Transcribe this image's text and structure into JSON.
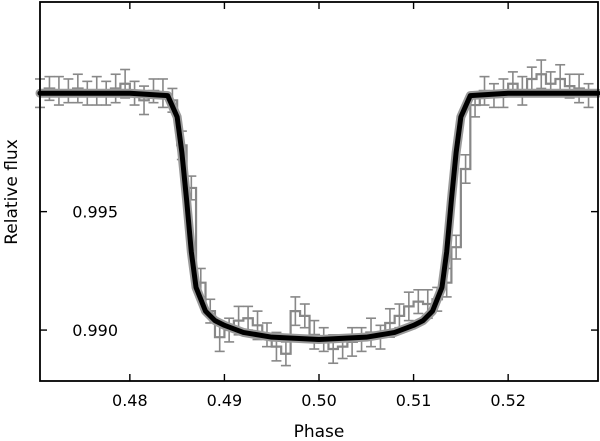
{
  "chart_data": {
    "type": "line",
    "title": "",
    "xlabel": "Phase",
    "ylabel": "Relative flux",
    "xlim": [
      0.4705,
      0.5295
    ],
    "ylim": [
      0.98785,
      1.00385
    ],
    "grid": false,
    "legend": "none",
    "x_ticks": [
      {
        "value": 0.48,
        "label": "0.48"
      },
      {
        "value": 0.49,
        "label": "0.49"
      },
      {
        "value": 0.5,
        "label": "0.50"
      },
      {
        "value": 0.51,
        "label": "0.51"
      },
      {
        "value": 0.52,
        "label": "0.52"
      }
    ],
    "y_ticks": [
      {
        "value": 0.995,
        "label": "0.995"
      },
      {
        "value": 0.99,
        "label": "0.990"
      }
    ],
    "series": [
      {
        "kind": "binned-data-step-with-errorbars",
        "color": "#888888",
        "bin_width": 0.001,
        "x": [
          0.4705,
          0.4715,
          0.4725,
          0.4735,
          0.4745,
          0.4755,
          0.4765,
          0.4775,
          0.4785,
          0.4795,
          0.4805,
          0.4815,
          0.4825,
          0.4835,
          0.4845,
          0.4855,
          0.4865,
          0.4875,
          0.4885,
          0.4895,
          0.4905,
          0.4915,
          0.4925,
          0.4935,
          0.4945,
          0.4955,
          0.4965,
          0.4975,
          0.4985,
          0.4995,
          0.5005,
          0.5015,
          0.5025,
          0.5035,
          0.5045,
          0.5055,
          0.5065,
          0.5075,
          0.5085,
          0.5095,
          0.5105,
          0.5115,
          0.5125,
          0.5135,
          0.5145,
          0.5155,
          0.5165,
          0.5175,
          0.5185,
          0.5195,
          0.5205,
          0.5215,
          0.5225,
          0.5235,
          0.5245,
          0.5255,
          0.5265,
          0.5275,
          0.5285
        ],
        "y": [
          1.0,
          1.0002,
          1.0001,
          1.0001,
          1.0002,
          1.0,
          1.0001,
          1.0,
          1.0002,
          1.0004,
          1.0,
          0.9997,
          1.0001,
          1.0,
          0.9997,
          0.9978,
          0.996,
          0.992,
          0.9908,
          0.9897,
          0.99,
          0.9904,
          0.9905,
          0.9902,
          0.9898,
          0.9893,
          0.989,
          0.9908,
          0.9906,
          0.9898,
          0.9896,
          0.9892,
          0.9893,
          0.9895,
          0.9896,
          0.9899,
          0.9897,
          0.9903,
          0.9906,
          0.991,
          0.9912,
          0.9911,
          0.9913,
          0.992,
          0.9935,
          0.9968,
          0.9995,
          1.0001,
          0.9999,
          1.0,
          1.0004,
          1.0001,
          1.0006,
          1.0008,
          1.0004,
          1.0006,
          1.0003,
          1.0002,
          0.9999
        ],
        "err": [
          0.0006,
          0.0005,
          0.0006,
          0.0005,
          0.0006,
          0.0005,
          0.0006,
          0.0005,
          0.0006,
          0.0006,
          0.0005,
          0.0006,
          0.0005,
          0.0006,
          0.0005,
          0.0006,
          0.0005,
          0.0006,
          0.0005,
          0.0006,
          0.0005,
          0.0006,
          0.0005,
          0.0006,
          0.0005,
          0.0006,
          0.0005,
          0.0006,
          0.0005,
          0.0006,
          0.0005,
          0.0006,
          0.0005,
          0.0006,
          0.0005,
          0.0006,
          0.0005,
          0.0006,
          0.0005,
          0.0006,
          0.0005,
          0.0006,
          0.0005,
          0.0006,
          0.0005,
          0.0006,
          0.0005,
          0.0006,
          0.0005,
          0.0006,
          0.0005,
          0.0006,
          0.0005,
          0.0006,
          0.0005,
          0.0006,
          0.0005,
          0.0006,
          0.0005
        ]
      },
      {
        "kind": "model-curve",
        "color": "#000000",
        "x": [
          0.4705,
          0.48,
          0.484,
          0.485,
          0.4855,
          0.486,
          0.4865,
          0.487,
          0.488,
          0.489,
          0.49,
          0.492,
          0.495,
          0.5,
          0.505,
          0.508,
          0.51,
          0.511,
          0.512,
          0.513,
          0.5135,
          0.514,
          0.5145,
          0.515,
          0.516,
          0.52,
          0.5295
        ],
        "y": [
          1.0,
          1.0,
          0.9999,
          0.999,
          0.9975,
          0.9955,
          0.9933,
          0.9918,
          0.9908,
          0.9904,
          0.9902,
          0.9899,
          0.9897,
          0.9896,
          0.9897,
          0.9899,
          0.9902,
          0.9904,
          0.9908,
          0.9918,
          0.9933,
          0.9955,
          0.9975,
          0.999,
          0.9999,
          1.0,
          1.0
        ]
      }
    ]
  }
}
